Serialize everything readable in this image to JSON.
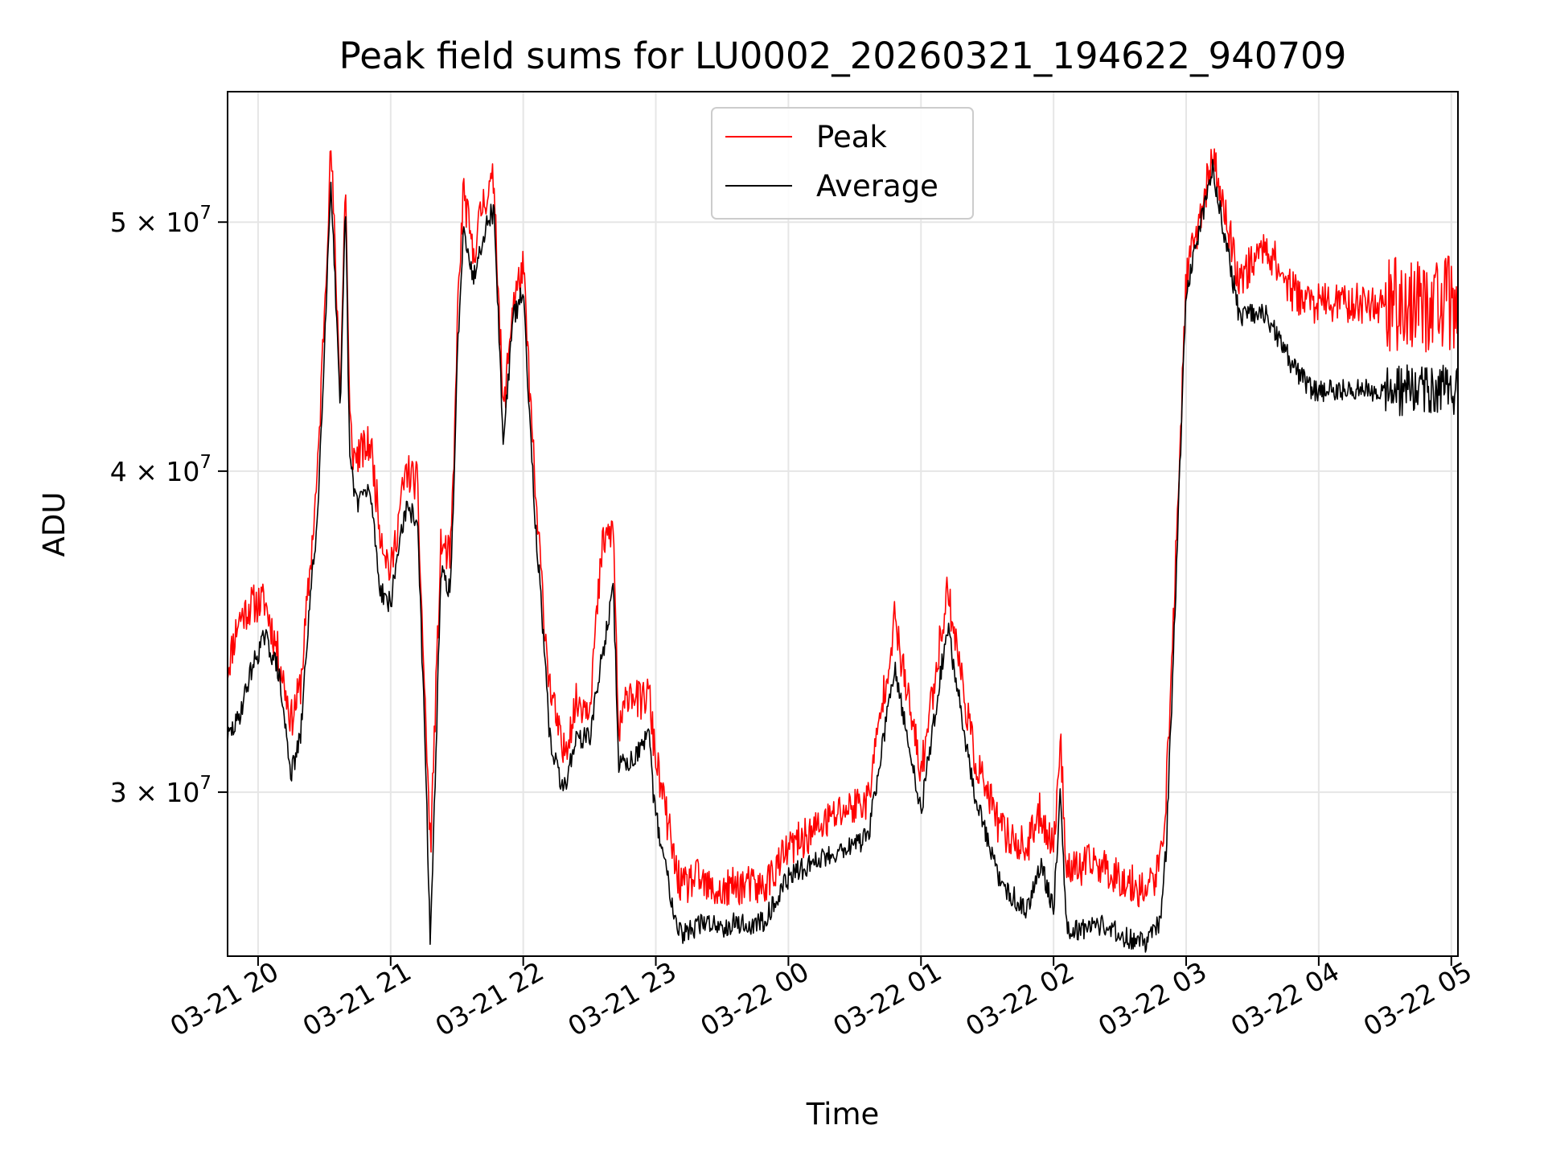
{
  "chart_data": {
    "type": "line",
    "title": "Peak field sums for LU0002_20260321_194622_940709",
    "xlabel": "Time",
    "ylabel": "ADU",
    "y_scale": "log",
    "ylim": [
      25900000,
      56200000
    ],
    "xlim_hours_from_2026_03_21_19_00": [
      0.77,
      10.05
    ],
    "grid": true,
    "legend_position": "upper-center",
    "x_ticks": [
      {
        "hour": 1,
        "label": "03-21 20"
      },
      {
        "hour": 2,
        "label": "03-21 21"
      },
      {
        "hour": 3,
        "label": "03-21 22"
      },
      {
        "hour": 4,
        "label": "03-21 23"
      },
      {
        "hour": 5,
        "label": "03-22 00"
      },
      {
        "hour": 6,
        "label": "03-22 01"
      },
      {
        "hour": 7,
        "label": "03-22 02"
      },
      {
        "hour": 8,
        "label": "03-22 03"
      },
      {
        "hour": 9,
        "label": "03-22 04"
      },
      {
        "hour": 10,
        "label": "03-22 05"
      }
    ],
    "y_ticks": [
      {
        "value": 30000000,
        "label": "3 × 10",
        "exp": "7"
      },
      {
        "value": 40000000,
        "label": "4 × 10",
        "exp": "7"
      },
      {
        "value": 50000000,
        "label": "5 × 10",
        "exp": "7"
      }
    ],
    "series": [
      {
        "name": "Peak",
        "color": "#ff0000",
        "x_hours": [
          0.77,
          0.85,
          0.95,
          1.05,
          1.15,
          1.25,
          1.32,
          1.38,
          1.45,
          1.55,
          1.62,
          1.66,
          1.69,
          1.72,
          1.75,
          1.78,
          1.85,
          1.92,
          2.0,
          2.08,
          2.12,
          2.2,
          2.25,
          2.3,
          2.38,
          2.45,
          2.48,
          2.5,
          2.55,
          2.62,
          2.7,
          2.75,
          2.78,
          2.85,
          2.92,
          3.0,
          3.05,
          3.1,
          3.12,
          3.15,
          3.2,
          3.3,
          3.4,
          3.5,
          3.6,
          3.68,
          3.72,
          3.8,
          3.88,
          3.95,
          3.98,
          4.02,
          4.1,
          4.15,
          4.2,
          4.3,
          4.4,
          4.5,
          4.6,
          4.7,
          4.8,
          4.9,
          5.0,
          5.2,
          5.4,
          5.6,
          5.8,
          6.0,
          6.2,
          6.4,
          6.6,
          6.8,
          6.83,
          6.9,
          7.0,
          7.05,
          7.1,
          7.2,
          7.3,
          7.4,
          7.5,
          7.6,
          7.7,
          7.8,
          7.85,
          7.9,
          8.0,
          8.2,
          8.4,
          8.6,
          8.8,
          8.95,
          9.05,
          9.15,
          9.25,
          9.33,
          9.38,
          9.42,
          9.47,
          9.52,
          9.6,
          9.7,
          9.8,
          9.9,
          10.05
        ],
        "values": [
          33500000,
          35000000,
          35500000,
          35600000,
          34000000,
          32000000,
          33000000,
          36000000,
          40000000,
          53500000,
          43000000,
          52000000,
          42000000,
          40500000,
          40600000,
          40700000,
          41000000,
          38000000,
          36500000,
          39000000,
          40000000,
          39600000,
          33500000,
          28500000,
          37500000,
          37000000,
          40500000,
          45500000,
          51500000,
          48500000,
          51000000,
          51500000,
          52000000,
          42000000,
          46500000,
          48000000,
          43000000,
          38500000,
          37500000,
          35500000,
          33000000,
          31000000,
          32500000,
          32500000,
          37500000,
          38000000,
          31500000,
          33000000,
          32500000,
          32800000,
          31500000,
          30500000,
          29000000,
          28000000,
          27500000,
          27800000,
          27500000,
          27400000,
          27600000,
          27600000,
          27500000,
          28000000,
          28500000,
          29000000,
          29500000,
          29800000,
          35000000,
          30500000,
          36000000,
          31000000,
          29000000,
          28500000,
          28800000,
          29500000,
          28500000,
          31500000,
          28000000,
          28000000,
          28200000,
          28000000,
          27800000,
          27600000,
          27500000,
          28000000,
          30000000,
          34500000,
          47500000,
          53000000,
          47500000,
          49000000,
          47000000,
          46500000,
          46500000,
          46500000,
          46500000,
          46500000,
          46500000,
          46500000,
          46500000,
          46500000,
          46500000,
          46500000,
          46500000,
          46500000,
          46500000
        ],
        "noise": 0.018,
        "seed": 11
      },
      {
        "name": "Average",
        "color": "#000000",
        "x_hours": [
          0.77,
          0.85,
          0.95,
          1.05,
          1.15,
          1.25,
          1.32,
          1.38,
          1.45,
          1.55,
          1.62,
          1.66,
          1.69,
          1.72,
          1.75,
          1.78,
          1.85,
          1.92,
          2.0,
          2.08,
          2.12,
          2.2,
          2.25,
          2.3,
          2.38,
          2.45,
          2.48,
          2.5,
          2.55,
          2.62,
          2.7,
          2.75,
          2.78,
          2.85,
          2.92,
          3.0,
          3.05,
          3.1,
          3.12,
          3.15,
          3.2,
          3.3,
          3.4,
          3.5,
          3.6,
          3.68,
          3.72,
          3.8,
          3.88,
          3.95,
          3.98,
          4.02,
          4.1,
          4.15,
          4.2,
          4.3,
          4.4,
          4.5,
          4.6,
          4.7,
          4.8,
          4.9,
          5.0,
          5.2,
          5.4,
          5.6,
          5.8,
          6.0,
          6.2,
          6.4,
          6.6,
          6.8,
          6.83,
          6.9,
          7.0,
          7.05,
          7.1,
          7.2,
          7.3,
          7.4,
          7.5,
          7.6,
          7.7,
          7.8,
          7.85,
          7.9,
          8.0,
          8.2,
          8.4,
          8.6,
          8.8,
          8.95,
          9.05,
          9.15,
          9.25,
          9.33,
          9.38,
          9.42,
          9.47,
          9.52,
          9.6,
          9.7,
          9.8,
          9.9,
          10.05
        ],
        "values": [
          31500000,
          32000000,
          33500000,
          34500000,
          33500000,
          30500000,
          31500000,
          35000000,
          38500000,
          52000000,
          42000000,
          51000000,
          40500000,
          39500000,
          38900000,
          39200000,
          39200000,
          36000000,
          35500000,
          38000000,
          38600000,
          38400000,
          32500000,
          26200000,
          36500000,
          36000000,
          39500000,
          44000000,
          50000000,
          47500000,
          49500000,
          50300000,
          50500000,
          41000000,
          45800000,
          47000000,
          42000000,
          37500000,
          36500000,
          34500000,
          31500000,
          30000000,
          31500000,
          31500000,
          34000000,
          36000000,
          30800000,
          30800000,
          31200000,
          31500000,
          30000000,
          29000000,
          27600000,
          26800000,
          26400000,
          26600000,
          26700000,
          26600000,
          26700000,
          26600000,
          26700000,
          27200000,
          27800000,
          28200000,
          28500000,
          28800000,
          33500000,
          29500000,
          34800000,
          30000000,
          27600000,
          27000000,
          27300000,
          28200000,
          27000000,
          30000000,
          26600000,
          26500000,
          26700000,
          26600000,
          26400000,
          26300000,
          26200000,
          26700000,
          28500000,
          33500000,
          47000000,
          52500000,
          46000000,
          46000000,
          44000000,
          43000000,
          43000000,
          43000000,
          43000000,
          43000000,
          43000000,
          43000000,
          43000000,
          43000000,
          43000000,
          43000000,
          43000000,
          43000000,
          43000000
        ],
        "noise": 0.01,
        "seed": 29
      }
    ]
  }
}
